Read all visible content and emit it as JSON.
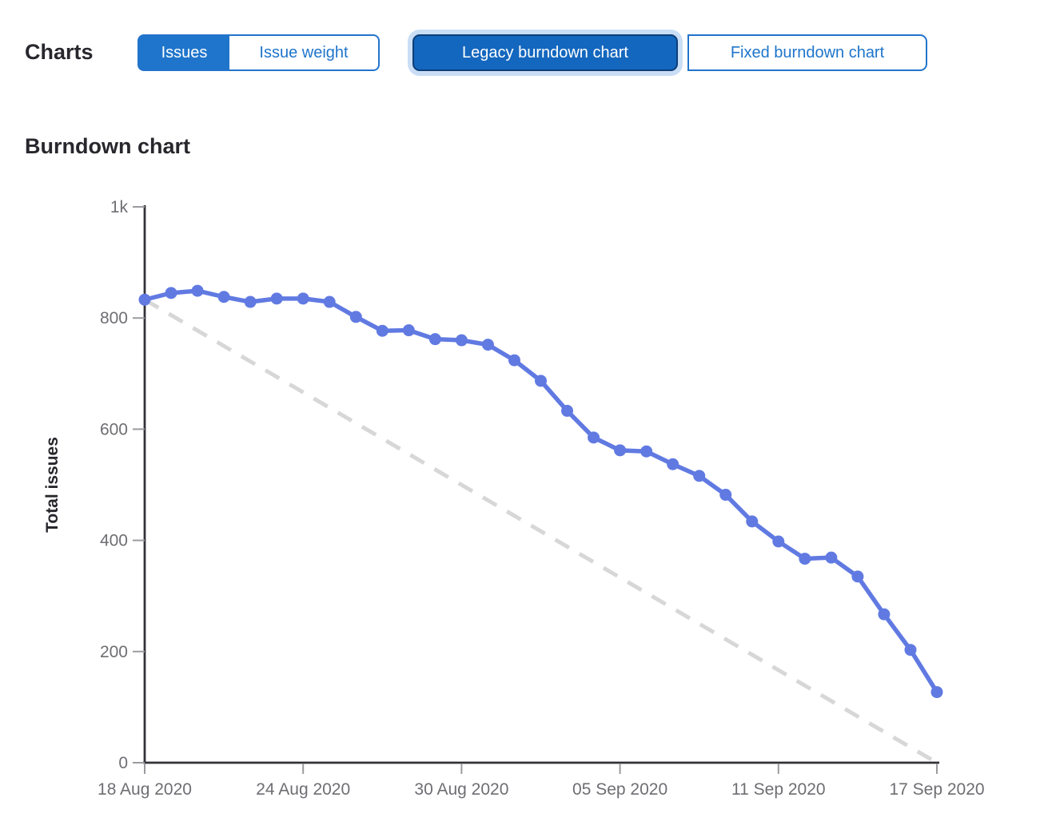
{
  "header": {
    "charts_label": "Charts",
    "metric_toggle": {
      "options": [
        {
          "label": "Issues",
          "selected": true
        },
        {
          "label": "Issue weight",
          "selected": false
        }
      ]
    },
    "chart_type_toggle": {
      "options": [
        {
          "label": "Legacy burndown chart",
          "selected": true,
          "focused": true
        },
        {
          "label": "Fixed burndown chart",
          "selected": false
        }
      ]
    }
  },
  "page": {
    "title": "Burndown chart"
  },
  "colors": {
    "accent_blue": "#1f75cb",
    "selected_button_blue": "#1467be",
    "focus_ring": "#c9ddf5",
    "series_blue": "#617ae2",
    "guideline_gray": "#d7d7d7"
  },
  "chart_data": {
    "type": "line",
    "title": "Burndown chart",
    "xlabel": "",
    "ylabel": "Total issues",
    "ylim": [
      0,
      1000
    ],
    "grid": false,
    "legend": "none",
    "y_ticks": {
      "values": [
        0,
        200,
        400,
        600,
        800,
        1000
      ],
      "labels": [
        "0",
        "200",
        "400",
        "600",
        "800",
        "1k"
      ]
    },
    "x": [
      "2020-08-18",
      "2020-08-19",
      "2020-08-20",
      "2020-08-21",
      "2020-08-22",
      "2020-08-23",
      "2020-08-24",
      "2020-08-25",
      "2020-08-26",
      "2020-08-27",
      "2020-08-28",
      "2020-08-29",
      "2020-08-30",
      "2020-08-31",
      "2020-09-01",
      "2020-09-02",
      "2020-09-03",
      "2020-09-04",
      "2020-09-05",
      "2020-09-06",
      "2020-09-07",
      "2020-09-08",
      "2020-09-09",
      "2020-09-10",
      "2020-09-11",
      "2020-09-12",
      "2020-09-13",
      "2020-09-14",
      "2020-09-15",
      "2020-09-16",
      "2020-09-17"
    ],
    "x_tick_indices": [
      0,
      6,
      12,
      18,
      24,
      30
    ],
    "x_tick_labels": [
      "18 Aug 2020",
      "24 Aug 2020",
      "30 Aug 2020",
      "05 Sep 2020",
      "11 Sep 2020",
      "17 Sep 2020"
    ],
    "series": [
      {
        "name": "Open issues",
        "type": "line",
        "color": "#617ae2",
        "values": [
          833,
          845,
          849,
          838,
          829,
          835,
          835,
          829,
          802,
          777,
          778,
          762,
          760,
          752,
          724,
          687,
          633,
          585,
          562,
          560,
          537,
          516,
          482,
          434,
          398,
          367,
          369,
          335,
          267,
          203,
          127
        ]
      },
      {
        "name": "Guideline",
        "type": "dashed-line",
        "color": "#d7d7d7",
        "points": [
          [
            0,
            833
          ],
          [
            30,
            0
          ]
        ]
      }
    ]
  }
}
